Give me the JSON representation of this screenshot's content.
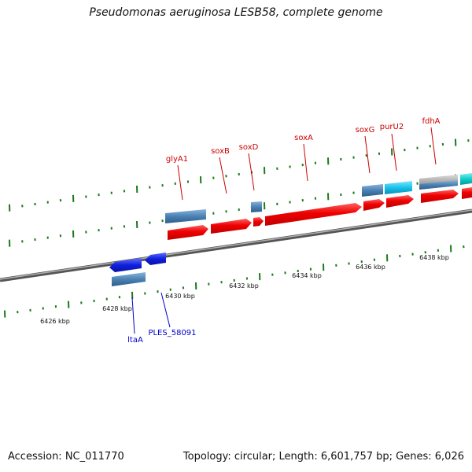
{
  "title": "Pseudomonas aeruginosa LESB58, complete genome",
  "footer": {
    "accession_label": "Accession: NC_011770",
    "summary": "Topology: circular; Length: 6,601,757 bp; Genes: 6,026"
  },
  "colors": {
    "backbone": "#7a7a7a",
    "tick": "#1a7a1a",
    "cds_red": "#ee0000",
    "gene_steel": "#4a82b4",
    "gene_cyan": "#18c2ea",
    "gene_teal": "#10cccc",
    "gene_gray": "#a8a8a8",
    "gene_blue": "#1020dd",
    "label_red": "#cc0000",
    "label_blue": "#0000cc"
  },
  "scale_labels": [
    "6426 kbp",
    "6428 kbp",
    "6430 kbp",
    "6432 kbp",
    "6434 kbp",
    "6436 kbp",
    "6438 kbp"
  ],
  "gene_labels_top": [
    "glyA1",
    "soxB",
    "soxD",
    "soxA",
    "soxG",
    "purU2",
    "fdhA"
  ],
  "gene_labels_bottom": [
    "ltaA",
    "PLES_58091"
  ]
}
